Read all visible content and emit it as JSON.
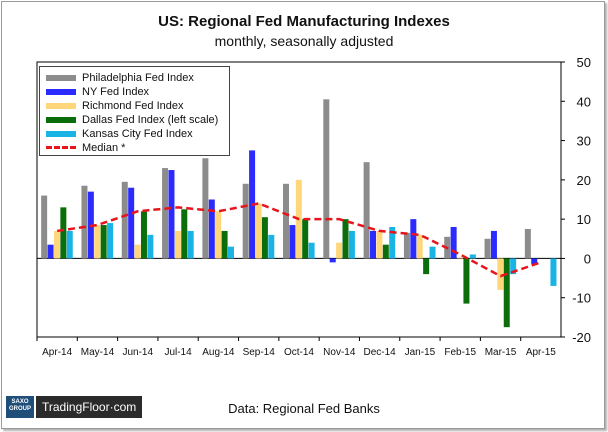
{
  "title": "US: Regional Fed Manufacturing Indexes",
  "subtitle": "monthly, seasonally adjusted",
  "source": "Data: Regional Fed Banks",
  "logo": {
    "box_line1": "SAXO",
    "box_line2": "GROUP",
    "name": "TradingFloor·com"
  },
  "colors": {
    "philadelphia": "#8c8c8c",
    "ny": "#2b2bff",
    "richmond": "#ffd67a",
    "dallas": "#0b6e0b",
    "kansas": "#1ab3e6",
    "median": "#e8141c"
  },
  "chart_data": {
    "type": "bar",
    "categories": [
      "Apr-14",
      "May-14",
      "Jun-14",
      "Jul-14",
      "Aug-14",
      "Sep-14",
      "Oct-14",
      "Nov-14",
      "Dec-14",
      "Jan-15",
      "Feb-15",
      "Mar-15",
      "Apr-15"
    ],
    "series": [
      {
        "name": "Philadelphia Fed Index",
        "values": [
          16,
          18.5,
          19.5,
          23,
          25.5,
          19,
          19,
          40.5,
          24.5,
          6.5,
          5.5,
          5,
          7.5
        ]
      },
      {
        "name": "NY Fed Index",
        "values": [
          3.5,
          17,
          18,
          22.5,
          15,
          27.5,
          8.5,
          -1,
          7,
          10,
          8,
          7,
          -1.5
        ]
      },
      {
        "name": "Richmond Fed Index",
        "values": [
          7,
          8.5,
          3.5,
          7,
          12,
          14,
          20,
          4,
          7,
          6,
          0,
          -8,
          null
        ]
      },
      {
        "name": "Dallas Fed Index (left scale)",
        "values": [
          13,
          8.5,
          12,
          12.5,
          7,
          10.5,
          10,
          10,
          3.5,
          -4,
          -11.5,
          -17.5,
          null
        ]
      },
      {
        "name": "Kansas City Fed Index",
        "values": [
          7,
          9,
          6,
          7,
          3,
          6,
          4,
          7,
          8,
          3,
          1,
          -4,
          -7
        ]
      }
    ],
    "median": {
      "name": "Median *",
      "values": [
        7,
        8.5,
        12,
        13,
        12,
        14,
        10,
        10,
        7,
        6,
        1,
        -4.5,
        -1
      ]
    },
    "ylim": [
      -20,
      50
    ],
    "yticks": [
      -20,
      -10,
      0,
      10,
      20,
      30,
      40,
      50
    ],
    "legend_position": "top-left"
  }
}
